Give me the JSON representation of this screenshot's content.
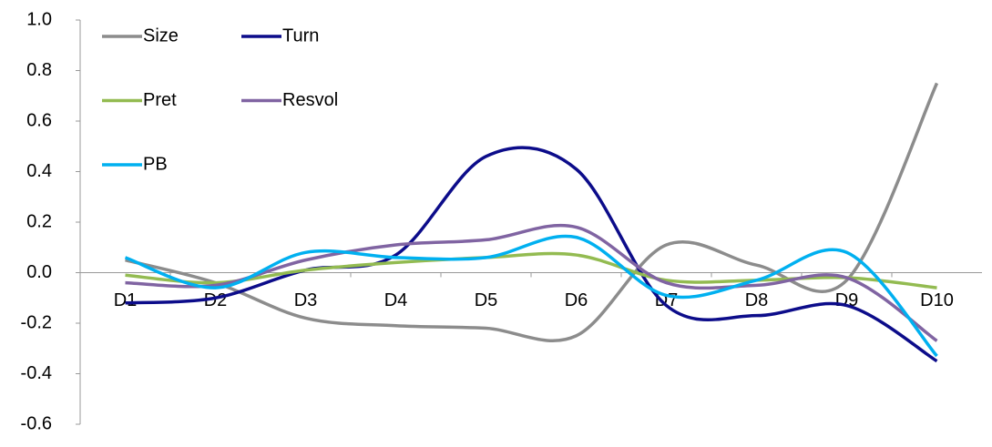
{
  "chart_data": {
    "type": "line",
    "categories": [
      "D1",
      "D2",
      "D3",
      "D4",
      "D5",
      "D6",
      "D7",
      "D8",
      "D9",
      "D10"
    ],
    "series": [
      {
        "name": "Size",
        "color": "#8c8c8c",
        "values": [
          0.05,
          -0.04,
          -0.18,
          -0.21,
          -0.22,
          -0.25,
          0.11,
          0.03,
          -0.03,
          0.75
        ]
      },
      {
        "name": "Turn",
        "color": "#0c0c8a",
        "values": [
          -0.12,
          -0.1,
          0.01,
          0.07,
          0.46,
          0.41,
          -0.13,
          -0.17,
          -0.13,
          -0.35
        ]
      },
      {
        "name": "Pret",
        "color": "#93bb51",
        "values": [
          -0.01,
          -0.04,
          0.01,
          0.04,
          0.06,
          0.07,
          -0.03,
          -0.03,
          -0.02,
          -0.06
        ]
      },
      {
        "name": "Resvol",
        "color": "#8064a2",
        "values": [
          -0.04,
          -0.05,
          0.05,
          0.11,
          0.13,
          0.18,
          -0.04,
          -0.05,
          -0.02,
          -0.27
        ]
      },
      {
        "name": "PB",
        "color": "#00b0f0",
        "values": [
          0.06,
          -0.06,
          0.08,
          0.06,
          0.06,
          0.14,
          -0.09,
          -0.03,
          0.08,
          -0.33
        ]
      }
    ],
    "ylim": [
      -0.6,
      1.0
    ],
    "yticks": [
      {
        "value": 1,
        "label": "1.0"
      },
      0.8,
      0.6,
      0.4,
      0.2,
      {
        "value": 0,
        "label": "0.0"
      },
      -0.2,
      -0.4,
      -0.6
    ]
  }
}
